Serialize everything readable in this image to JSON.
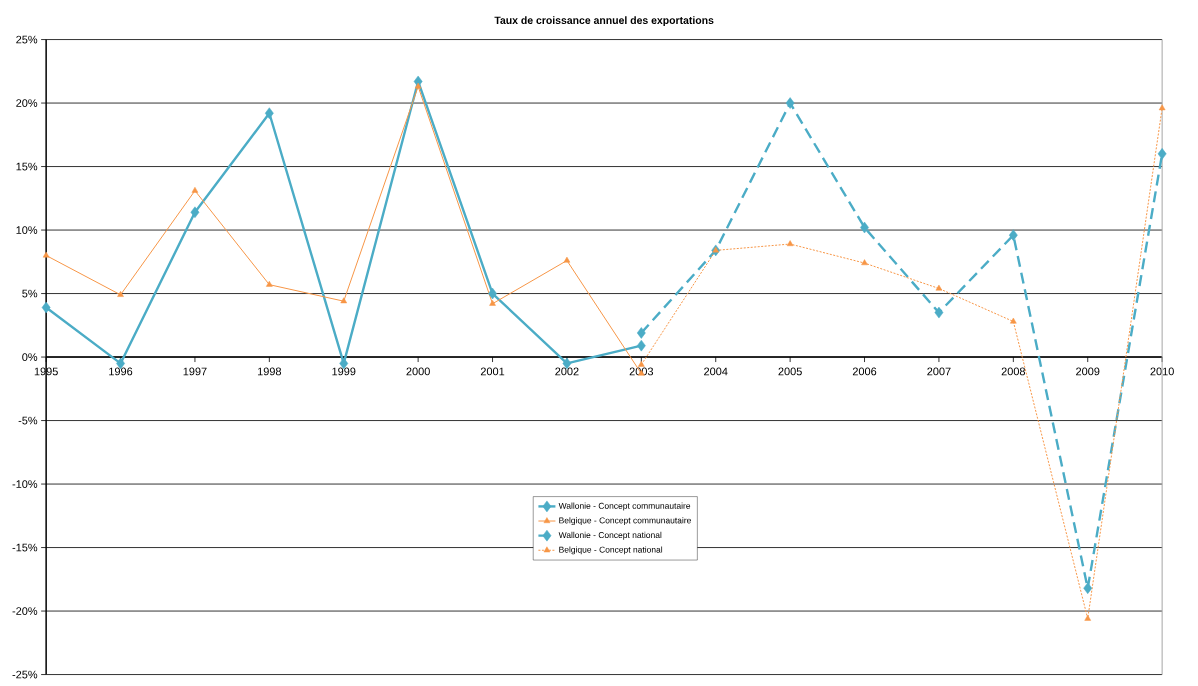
{
  "chart_data": {
    "type": "line",
    "title": "Taux de croissance annuel des exportations",
    "categories": [
      "1995",
      "1996",
      "1997",
      "1998",
      "1999",
      "2000",
      "2001",
      "2002",
      "2003",
      "2004",
      "2005",
      "2006",
      "2007",
      "2008",
      "2009",
      "2010"
    ],
    "series": [
      {
        "name": "Wallonie - Concept communautaire",
        "color": "#4bacc6",
        "marker": "diamond",
        "line_style": "solid",
        "values": [
          3.9,
          -0.5,
          11.4,
          19.2,
          -0.5,
          21.7,
          5.0,
          -0.5,
          0.9,
          null,
          null,
          null,
          null,
          null,
          null,
          null
        ]
      },
      {
        "name": "Belgique - Concept communautaire",
        "color": "#f79646",
        "marker": "triangle",
        "line_style": "solid",
        "values": [
          8.0,
          4.9,
          13.1,
          5.7,
          4.4,
          21.3,
          4.2,
          7.6,
          -1.3,
          null,
          null,
          null,
          null,
          null,
          null,
          null
        ]
      },
      {
        "name": "Wallonie - Concept national",
        "color": "#4bacc6",
        "marker": "diamond",
        "line_style": "dashed",
        "values": [
          null,
          null,
          null,
          null,
          null,
          null,
          null,
          null,
          1.9,
          8.4,
          20.0,
          10.2,
          3.5,
          9.6,
          -18.2,
          16.0
        ]
      },
      {
        "name": "Belgique - Concept national",
        "color": "#f79646",
        "marker": "triangle",
        "line_style": "dotted",
        "values": [
          null,
          null,
          null,
          null,
          null,
          null,
          null,
          null,
          -0.6,
          8.4,
          8.9,
          7.4,
          5.4,
          2.8,
          -20.6,
          19.6
        ]
      }
    ],
    "ylim": [
      -25,
      25
    ],
    "yticks": [
      {
        "value": -25,
        "label": "-25%"
      },
      {
        "value": -20,
        "label": "-20%"
      },
      {
        "value": -15,
        "label": "-15%"
      },
      {
        "value": -10,
        "label": "-10%"
      },
      {
        "value": -5,
        "label": "-5%"
      },
      {
        "value": 0,
        "label": "0%"
      },
      {
        "value": 5,
        "label": "5%"
      },
      {
        "value": 10,
        "label": "10%"
      },
      {
        "value": 15,
        "label": "15%"
      },
      {
        "value": 20,
        "label": "20%"
      },
      {
        "value": 25,
        "label": "25%"
      }
    ],
    "grid": "y",
    "legend": "bottom"
  }
}
